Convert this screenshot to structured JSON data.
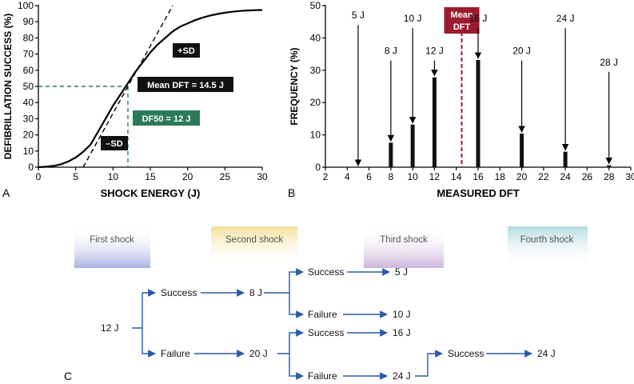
{
  "chart_data": [
    {
      "type": "line",
      "panel": "A",
      "xlabel": "SHOCK ENERGY (J)",
      "ylabel": "DEFIBRILLATION SUCCESS (%)",
      "xlim": [
        0,
        30
      ],
      "ylim": [
        0,
        100
      ],
      "xticks": [
        0,
        5,
        10,
        15,
        20,
        25,
        30
      ],
      "yticks": [
        0,
        10,
        20,
        30,
        40,
        50,
        60,
        70,
        80,
        90,
        100
      ],
      "series": [
        {
          "name": "dose-response curve",
          "x": [
            0,
            1,
            2,
            3,
            4,
            5,
            6,
            7,
            8,
            9,
            10,
            11,
            12,
            13,
            14,
            15,
            16,
            17,
            18,
            19,
            20,
            21,
            22,
            23,
            24,
            25,
            26,
            27,
            28,
            29,
            30
          ],
          "y": [
            0,
            0.3,
            0.8,
            1.8,
            3.5,
            6,
            9.5,
            14,
            22,
            30,
            38,
            45,
            52,
            59,
            65,
            71,
            76,
            80,
            84,
            87,
            89,
            91,
            92.5,
            93.8,
            94.8,
            95.6,
            96.2,
            96.7,
            97,
            97.2,
            97.3
          ]
        },
        {
          "name": "tangent",
          "x": [
            6,
            18
          ],
          "y": [
            0,
            100
          ]
        }
      ],
      "reference_lines": {
        "df50_x": 12,
        "df50_y": 50
      },
      "annotations": {
        "plus_sd": "+SD",
        "minus_sd": "–SD",
        "mean_dft": "Mean DFT = 14.5 J",
        "df50": "DF50 = 12 J"
      },
      "colors": {
        "curve": "#000000",
        "df50": "#2d7a5a",
        "label_bg": "#111111"
      }
    },
    {
      "type": "bar",
      "panel": "B",
      "xlabel": "MEASURED DFT",
      "ylabel": "FREQUENCY (%)",
      "xlim": [
        2,
        30
      ],
      "ylim": [
        0,
        50
      ],
      "xticks": [
        2,
        4,
        6,
        8,
        10,
        12,
        14,
        16,
        18,
        20,
        22,
        24,
        26,
        28,
        30
      ],
      "yticks": [
        0,
        10,
        20,
        30,
        40,
        50
      ],
      "categories": [
        5,
        8,
        10,
        12,
        16,
        20,
        24,
        28
      ],
      "values": [
        0,
        7.6,
        13.2,
        27.8,
        33.2,
        10.4,
        4.8,
        0.6
      ],
      "bar_labels": [
        "5 J",
        "8 J",
        "10 J",
        "12 J",
        "16 J",
        "20 J",
        "24 J",
        "28 J"
      ],
      "label_y": [
        45,
        34,
        44,
        34,
        44,
        34,
        44,
        30.5
      ],
      "mean_dft": {
        "x": 14.5,
        "label_line1": "Mean",
        "label_line2": "DFT"
      },
      "colors": {
        "bars": "#111111",
        "mean": "#9b1b30",
        "mean_label_text": "#ffffff"
      }
    }
  ],
  "panel_labels": {
    "a": "A",
    "b": "B",
    "c": "C"
  },
  "flowchart": {
    "headers": [
      {
        "label": "First shock",
        "color": "#a7b1e0"
      },
      {
        "label": "Second shock",
        "color": "#f3e09a"
      },
      {
        "label": "Third shock",
        "color": "#cdb4dc"
      },
      {
        "label": "Fourth shock",
        "color": "#b4dce0"
      }
    ],
    "nodes": {
      "start": "12  J",
      "success1": "Success",
      "failure1": "Failure",
      "e8": "8  J",
      "e20": "20  J",
      "success2": "Success",
      "failure2": "Failure",
      "success3": "Success",
      "failure3": "Failure",
      "r5": "5  J",
      "r10": "10  J",
      "r16": "16  J",
      "e24": "24  J",
      "success4": "Success",
      "r24": "24  J"
    },
    "arrow_color": "#2a5aa8"
  }
}
